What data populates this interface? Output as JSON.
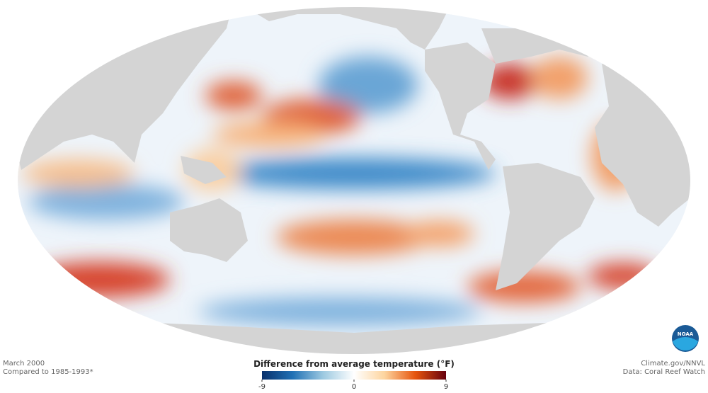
{
  "caption": {
    "date": "March 2000",
    "baseline": "Compared to 1985-1993*"
  },
  "credits": {
    "source": "Climate.gov/NNVL",
    "data": "Data: Coral Reef Watch"
  },
  "logo": "NOAA",
  "colorbar": {
    "title": "Difference from average temperature (°F)",
    "lim": [
      -9,
      9
    ],
    "ticks": [
      -9,
      0,
      9
    ],
    "colors": [
      "#08306b",
      "#2171b5",
      "#9ecae1",
      "#ffffff",
      "#fdd49e",
      "#e6550d",
      "#67000d"
    ]
  }
}
